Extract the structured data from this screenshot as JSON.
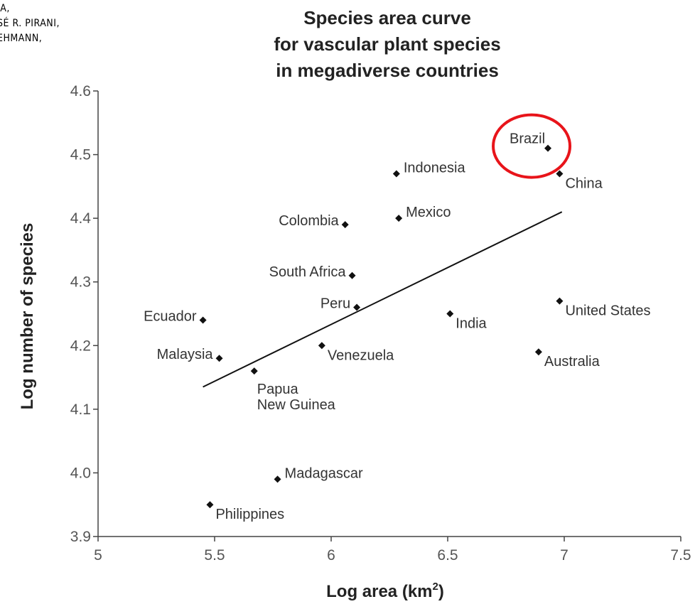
{
  "header_lines": [
    "IA,",
    "SÉ R. PIRANI,",
    "EHMANN,"
  ],
  "chart_data": {
    "type": "scatter",
    "title_lines": [
      "Species area curve",
      "for vascular plant species",
      "in megadiverse countries"
    ],
    "xlabel": "Log area (km",
    "xlabel_sup": "2",
    "xlabel_end": ")",
    "ylabel": "Log number of species",
    "xlim": [
      5,
      7.5
    ],
    "ylim": [
      3.9,
      4.6
    ],
    "x_ticks": [
      "5",
      "5.5",
      "6",
      "6.5",
      "7",
      "7.5"
    ],
    "y_ticks": [
      "3.9",
      "4.0",
      "4.1",
      "4.2",
      "4.3",
      "4.4",
      "4.5",
      "4.6"
    ],
    "points": [
      {
        "name": "Brazil",
        "x": 6.93,
        "y": 4.51,
        "label_pos": "above-left"
      },
      {
        "name": "China",
        "x": 6.98,
        "y": 4.47,
        "label_pos": "below-right"
      },
      {
        "name": "Indonesia",
        "x": 6.28,
        "y": 4.47,
        "label_pos": "right"
      },
      {
        "name": "Mexico",
        "x": 6.29,
        "y": 4.4,
        "label_pos": "right"
      },
      {
        "name": "Colombia",
        "x": 6.06,
        "y": 4.39,
        "label_pos": "left"
      },
      {
        "name": "South Africa",
        "x": 6.09,
        "y": 4.31,
        "label_pos": "left"
      },
      {
        "name": "Peru",
        "x": 6.11,
        "y": 4.26,
        "label_pos": "left"
      },
      {
        "name": "Ecuador",
        "x": 5.45,
        "y": 4.24,
        "label_pos": "left"
      },
      {
        "name": "India",
        "x": 6.51,
        "y": 4.25,
        "label_pos": "below-right"
      },
      {
        "name": "United States",
        "x": 6.98,
        "y": 4.27,
        "label_pos": "below-right"
      },
      {
        "name": "Malaysia",
        "x": 5.52,
        "y": 4.18,
        "label_pos": "left"
      },
      {
        "name": "Venezuela",
        "x": 5.96,
        "y": 4.2,
        "label_pos": "below-right"
      },
      {
        "name": "Australia",
        "x": 6.89,
        "y": 4.19,
        "label_pos": "below-right"
      },
      {
        "name": "Papua\nNew Guinea",
        "x": 5.67,
        "y": 4.16,
        "label_pos": "below"
      },
      {
        "name": "Madagascar",
        "x": 5.77,
        "y": 3.99,
        "label_pos": "right"
      },
      {
        "name": "Philippines",
        "x": 5.48,
        "y": 3.95,
        "label_pos": "below-right"
      }
    ],
    "trend_line": {
      "x": [
        5.45,
        6.99
      ],
      "y": [
        4.135,
        4.41
      ]
    },
    "highlight": "Brazil",
    "highlight_color": "#e8141a",
    "grid": false,
    "legend": "none"
  }
}
